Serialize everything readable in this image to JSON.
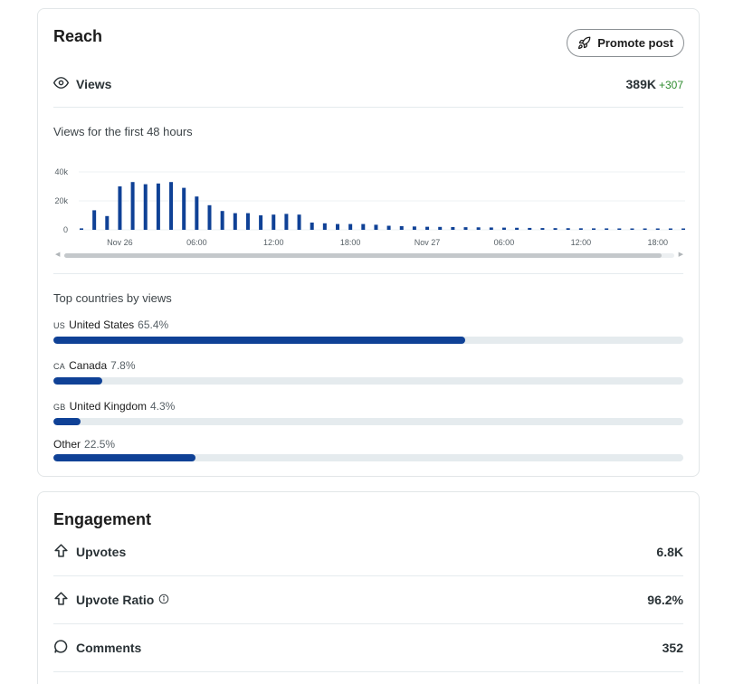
{
  "reach": {
    "title": "Reach",
    "promote_label": "Promote post",
    "views_label": "Views",
    "views_value": "389K",
    "views_delta": "+307",
    "chart_title": "Views for the first 48 hours",
    "countries_title": "Top countries by views",
    "countries": [
      {
        "code": "US",
        "name": "United States",
        "percent_label": "65.4%",
        "percent": 65.4
      },
      {
        "code": "CA",
        "name": "Canada",
        "percent_label": "7.8%",
        "percent": 7.8
      },
      {
        "code": "GB",
        "name": "United Kingdom",
        "percent_label": "4.3%",
        "percent": 4.3
      },
      {
        "code": "",
        "name": "Other",
        "percent_label": "22.5%",
        "percent": 22.5
      }
    ]
  },
  "engagement": {
    "title": "Engagement",
    "rows": [
      {
        "label": "Upvotes",
        "value": "6.8K"
      },
      {
        "label": "Upvote Ratio",
        "value": "96.2%"
      },
      {
        "label": "Comments",
        "value": "352"
      }
    ]
  },
  "colors": {
    "bar": "#0f4196",
    "delta_green": "#2e8b2e",
    "track": "#e5ebee"
  },
  "chart_data": {
    "type": "bar",
    "title": "Views for the first 48 hours",
    "xlabel": "",
    "ylabel": "",
    "ylim": [
      0,
      40000
    ],
    "y_ticks": [
      "0",
      "20k",
      "40k"
    ],
    "x_tick_labels": [
      "Nov 26",
      "06:00",
      "12:00",
      "18:00",
      "Nov 27",
      "06:00",
      "12:00",
      "18:00"
    ],
    "values": [
      1000,
      13500,
      9500,
      30000,
      33000,
      31500,
      32000,
      33000,
      29000,
      23000,
      17000,
      13000,
      11500,
      11500,
      10000,
      10500,
      11000,
      10500,
      5000,
      4500,
      4000,
      4000,
      4000,
      3500,
      2800,
      2500,
      2300,
      2100,
      2000,
      1900,
      1800,
      1700,
      1600,
      1500,
      1400,
      1300,
      1200,
      1150,
      1100,
      1050,
      1000,
      980,
      950,
      920,
      900,
      880,
      860,
      840
    ],
    "grid": true
  }
}
